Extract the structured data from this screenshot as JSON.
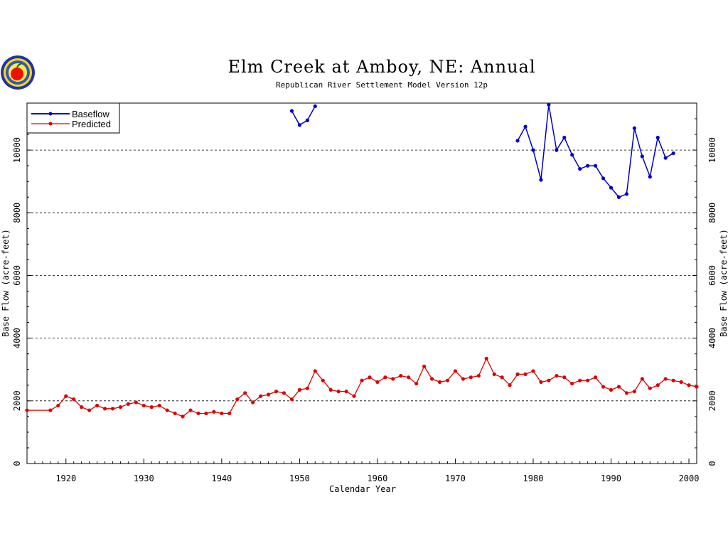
{
  "chart_data": {
    "type": "line",
    "title": "Elm Creek at Amboy, NE: Annual",
    "subtitle": "Republican River Settlement Model Version 12p",
    "xlabel": "Calendar Year",
    "ylabel": "Base Flow (acre-feet)",
    "xlim": [
      1915,
      2001
    ],
    "ylim": [
      0,
      11500
    ],
    "x_ticks": [
      1920,
      1930,
      1940,
      1950,
      1960,
      1970,
      1980,
      1990,
      2000
    ],
    "y_ticks": [
      0,
      2000,
      4000,
      6000,
      8000,
      10000
    ],
    "grid": "horizontal-dashed",
    "legend_placement": "top-left",
    "series": [
      {
        "name": "Baseflow",
        "color": "#0000cc",
        "points": [
          [
            1949,
            11250
          ],
          [
            1950,
            10800
          ],
          [
            1951,
            10950
          ],
          [
            1952,
            11400
          ],
          null,
          [
            1978,
            10300
          ],
          [
            1979,
            10750
          ],
          [
            1980,
            10000
          ],
          [
            1981,
            9050
          ],
          [
            1982,
            11450
          ],
          [
            1983,
            10000
          ],
          [
            1984,
            10400
          ],
          [
            1985,
            9850
          ],
          [
            1986,
            9400
          ],
          [
            1987,
            9500
          ],
          [
            1988,
            9500
          ],
          [
            1989,
            9100
          ],
          [
            1990,
            8800
          ],
          [
            1991,
            8500
          ],
          [
            1992,
            8600
          ],
          [
            1993,
            10700
          ],
          [
            1994,
            9800
          ],
          [
            1995,
            9150
          ],
          [
            1996,
            10400
          ],
          [
            1997,
            9750
          ],
          [
            1998,
            9900
          ]
        ]
      },
      {
        "name": "Predicted",
        "color": "#dd0000",
        "points": [
          [
            1915,
            1700
          ],
          [
            1918,
            1700
          ],
          [
            1919,
            1850
          ],
          [
            1920,
            2150
          ],
          [
            1921,
            2050
          ],
          [
            1922,
            1800
          ],
          [
            1923,
            1700
          ],
          [
            1924,
            1850
          ],
          [
            1925,
            1750
          ],
          [
            1926,
            1750
          ],
          [
            1927,
            1800
          ],
          [
            1928,
            1900
          ],
          [
            1929,
            1950
          ],
          [
            1930,
            1850
          ],
          [
            1931,
            1800
          ],
          [
            1932,
            1850
          ],
          [
            1933,
            1700
          ],
          [
            1934,
            1600
          ],
          [
            1935,
            1500
          ],
          [
            1936,
            1700
          ],
          [
            1937,
            1600
          ],
          [
            1938,
            1600
          ],
          [
            1939,
            1650
          ],
          [
            1940,
            1600
          ],
          [
            1941,
            1600
          ],
          [
            1942,
            2050
          ],
          [
            1943,
            2250
          ],
          [
            1944,
            1950
          ],
          [
            1945,
            2150
          ],
          [
            1946,
            2200
          ],
          [
            1947,
            2300
          ],
          [
            1948,
            2250
          ],
          [
            1949,
            2050
          ],
          [
            1950,
            2350
          ],
          [
            1951,
            2400
          ],
          [
            1952,
            2950
          ],
          [
            1953,
            2650
          ],
          [
            1954,
            2350
          ],
          [
            1955,
            2300
          ],
          [
            1956,
            2300
          ],
          [
            1957,
            2150
          ],
          [
            1958,
            2650
          ],
          [
            1959,
            2750
          ],
          [
            1960,
            2600
          ],
          [
            1961,
            2750
          ],
          [
            1962,
            2700
          ],
          [
            1963,
            2800
          ],
          [
            1964,
            2750
          ],
          [
            1965,
            2550
          ],
          [
            1966,
            3100
          ],
          [
            1967,
            2700
          ],
          [
            1968,
            2600
          ],
          [
            1969,
            2650
          ],
          [
            1970,
            2950
          ],
          [
            1971,
            2700
          ],
          [
            1972,
            2750
          ],
          [
            1973,
            2800
          ],
          [
            1974,
            3350
          ],
          [
            1975,
            2850
          ],
          [
            1976,
            2750
          ],
          [
            1977,
            2500
          ],
          [
            1978,
            2850
          ],
          [
            1979,
            2850
          ],
          [
            1980,
            2950
          ],
          [
            1981,
            2600
          ],
          [
            1982,
            2650
          ],
          [
            1983,
            2800
          ],
          [
            1984,
            2750
          ],
          [
            1985,
            2550
          ],
          [
            1986,
            2650
          ],
          [
            1987,
            2650
          ],
          [
            1988,
            2750
          ],
          [
            1989,
            2450
          ],
          [
            1990,
            2350
          ],
          [
            1991,
            2450
          ],
          [
            1992,
            2250
          ],
          [
            1993,
            2300
          ],
          [
            1994,
            2700
          ],
          [
            1995,
            2400
          ],
          [
            1996,
            2500
          ],
          [
            1997,
            2700
          ],
          [
            1998,
            2650
          ],
          [
            1999,
            2600
          ],
          [
            2000,
            2500
          ],
          [
            2001,
            2450
          ]
        ]
      }
    ]
  }
}
